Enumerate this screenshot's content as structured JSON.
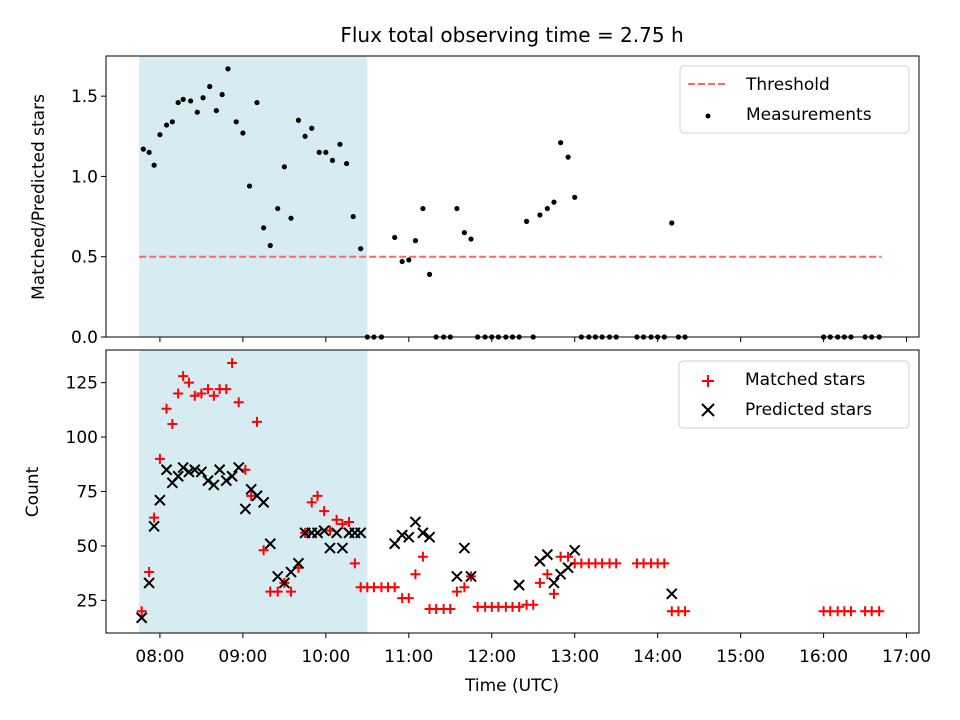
{
  "chart_data": [
    {
      "type": "scatter",
      "title": "Flux total observing time = 2.75 h",
      "xlabel": "",
      "ylabel": "Matched/Predicted stars",
      "xlim": [
        7.35,
        17.15
      ],
      "ylim": [
        0,
        1.75
      ],
      "yticks": [
        0.0,
        0.5,
        1.0,
        1.5
      ],
      "ytick_labels": [
        "0.0",
        "0.5",
        "1.0",
        "1.5"
      ],
      "shaded_range": [
        7.75,
        10.5
      ],
      "shade_color": "#add8e6",
      "legend_position": "top-right",
      "series": [
        {
          "name": "Threshold",
          "kind": "dashed-line",
          "color": "#ff6666",
          "x": [
            7.75,
            16.7
          ],
          "y": [
            0.5,
            0.5
          ]
        },
        {
          "name": "Measurements",
          "kind": "dot",
          "color": "#000000",
          "points": [
            [
              7.8,
              1.17
            ],
            [
              7.87,
              1.15
            ],
            [
              7.93,
              1.07
            ],
            [
              8.0,
              1.26
            ],
            [
              8.08,
              1.32
            ],
            [
              8.15,
              1.34
            ],
            [
              8.22,
              1.46
            ],
            [
              8.28,
              1.48
            ],
            [
              8.37,
              1.47
            ],
            [
              8.45,
              1.4
            ],
            [
              8.52,
              1.49
            ],
            [
              8.6,
              1.56
            ],
            [
              8.68,
              1.41
            ],
            [
              8.75,
              1.51
            ],
            [
              8.82,
              1.67
            ],
            [
              8.92,
              1.34
            ],
            [
              9.0,
              1.27
            ],
            [
              9.08,
              0.94
            ],
            [
              9.17,
              1.46
            ],
            [
              9.25,
              0.68
            ],
            [
              9.33,
              0.57
            ],
            [
              9.42,
              0.8
            ],
            [
              9.5,
              1.06
            ],
            [
              9.58,
              0.74
            ],
            [
              9.67,
              1.35
            ],
            [
              9.75,
              1.25
            ],
            [
              9.83,
              1.3
            ],
            [
              9.92,
              1.15
            ],
            [
              10.0,
              1.15
            ],
            [
              10.08,
              1.1
            ],
            [
              10.17,
              1.2
            ],
            [
              10.25,
              1.08
            ],
            [
              10.33,
              0.75
            ],
            [
              10.42,
              0.55
            ],
            [
              10.5,
              0.0
            ],
            [
              10.58,
              0.0
            ],
            [
              10.67,
              0.0
            ],
            [
              10.83,
              0.62
            ],
            [
              10.92,
              0.47
            ],
            [
              11.0,
              0.48
            ],
            [
              11.08,
              0.6
            ],
            [
              11.17,
              0.8
            ],
            [
              11.25,
              0.39
            ],
            [
              11.33,
              0.0
            ],
            [
              11.42,
              0.0
            ],
            [
              11.5,
              0.0
            ],
            [
              11.58,
              0.8
            ],
            [
              11.67,
              0.65
            ],
            [
              11.75,
              0.61
            ],
            [
              11.83,
              0.0
            ],
            [
              11.92,
              0.0
            ],
            [
              12.0,
              0.0
            ],
            [
              12.08,
              0.0
            ],
            [
              12.17,
              0.0
            ],
            [
              12.25,
              0.0
            ],
            [
              12.33,
              0.0
            ],
            [
              12.42,
              0.72
            ],
            [
              12.5,
              0.0
            ],
            [
              12.58,
              0.76
            ],
            [
              12.67,
              0.8
            ],
            [
              12.75,
              0.84
            ],
            [
              12.83,
              1.21
            ],
            [
              12.92,
              1.12
            ],
            [
              13.0,
              0.87
            ],
            [
              13.08,
              0.0
            ],
            [
              13.17,
              0.0
            ],
            [
              13.25,
              0.0
            ],
            [
              13.33,
              0.0
            ],
            [
              13.42,
              0.0
            ],
            [
              13.5,
              0.0
            ],
            [
              13.75,
              0.0
            ],
            [
              13.83,
              0.0
            ],
            [
              13.92,
              0.0
            ],
            [
              14.0,
              0.0
            ],
            [
              14.08,
              0.0
            ],
            [
              14.17,
              0.71
            ],
            [
              14.25,
              0.0
            ],
            [
              14.33,
              0.0
            ],
            [
              16.0,
              0.0
            ],
            [
              16.08,
              0.0
            ],
            [
              16.17,
              0.0
            ],
            [
              16.25,
              0.0
            ],
            [
              16.33,
              0.0
            ],
            [
              16.5,
              0.0
            ],
            [
              16.58,
              0.0
            ],
            [
              16.67,
              0.0
            ]
          ]
        }
      ]
    },
    {
      "type": "scatter",
      "title": "",
      "xlabel": "Time (UTC)",
      "ylabel": "Count",
      "xlim": [
        7.35,
        17.15
      ],
      "ylim": [
        10,
        140
      ],
      "xticks": [
        8,
        9,
        10,
        11,
        12,
        13,
        14,
        15,
        16,
        17
      ],
      "xtick_labels": [
        "08:00",
        "09:00",
        "10:00",
        "11:00",
        "12:00",
        "13:00",
        "14:00",
        "15:00",
        "16:00",
        "17:00"
      ],
      "yticks": [
        25,
        50,
        75,
        100,
        125
      ],
      "ytick_labels": [
        "25",
        "50",
        "75",
        "100",
        "125"
      ],
      "shaded_range": [
        7.75,
        10.5
      ],
      "shade_color": "#add8e6",
      "legend_position": "top-right",
      "series": [
        {
          "name": "Matched stars",
          "kind": "plus",
          "color": "#ff0000",
          "points": [
            [
              7.78,
              20
            ],
            [
              7.87,
              38
            ],
            [
              7.93,
              63
            ],
            [
              8.0,
              90
            ],
            [
              8.08,
              113
            ],
            [
              8.15,
              106
            ],
            [
              8.22,
              120
            ],
            [
              8.28,
              128
            ],
            [
              8.35,
              125
            ],
            [
              8.42,
              119
            ],
            [
              8.5,
              120
            ],
            [
              8.58,
              122
            ],
            [
              8.65,
              119
            ],
            [
              8.72,
              122
            ],
            [
              8.8,
              122
            ],
            [
              8.87,
              134
            ],
            [
              8.95,
              116
            ],
            [
              9.03,
              85
            ],
            [
              9.1,
              73
            ],
            [
              9.17,
              107
            ],
            [
              9.25,
              48
            ],
            [
              9.33,
              29
            ],
            [
              9.42,
              29
            ],
            [
              9.5,
              33
            ],
            [
              9.58,
              29
            ],
            [
              9.67,
              40
            ],
            [
              9.75,
              56
            ],
            [
              9.83,
              70
            ],
            [
              9.9,
              73
            ],
            [
              9.98,
              66
            ],
            [
              10.05,
              57
            ],
            [
              10.13,
              62
            ],
            [
              10.2,
              60
            ],
            [
              10.28,
              61
            ],
            [
              10.35,
              42
            ],
            [
              10.42,
              31
            ],
            [
              10.5,
              31
            ],
            [
              10.58,
              31
            ],
            [
              10.67,
              31
            ],
            [
              10.75,
              31
            ],
            [
              10.83,
              31
            ],
            [
              10.92,
              26
            ],
            [
              11.0,
              26
            ],
            [
              11.08,
              37
            ],
            [
              11.17,
              45
            ],
            [
              11.25,
              21
            ],
            [
              11.33,
              21
            ],
            [
              11.42,
              21
            ],
            [
              11.5,
              21
            ],
            [
              11.58,
              29
            ],
            [
              11.67,
              31
            ],
            [
              11.75,
              36
            ],
            [
              11.83,
              22
            ],
            [
              11.92,
              22
            ],
            [
              12.0,
              22
            ],
            [
              12.08,
              22
            ],
            [
              12.17,
              22
            ],
            [
              12.25,
              22
            ],
            [
              12.33,
              22
            ],
            [
              12.42,
              23
            ],
            [
              12.5,
              23
            ],
            [
              12.58,
              33
            ],
            [
              12.67,
              37
            ],
            [
              12.75,
              28
            ],
            [
              12.83,
              45
            ],
            [
              12.92,
              45
            ],
            [
              13.0,
              42
            ],
            [
              13.08,
              42
            ],
            [
              13.17,
              42
            ],
            [
              13.25,
              42
            ],
            [
              13.33,
              42
            ],
            [
              13.42,
              42
            ],
            [
              13.5,
              42
            ],
            [
              13.75,
              42
            ],
            [
              13.83,
              42
            ],
            [
              13.92,
              42
            ],
            [
              14.0,
              42
            ],
            [
              14.08,
              42
            ],
            [
              14.17,
              20
            ],
            [
              14.25,
              20
            ],
            [
              14.33,
              20
            ],
            [
              16.0,
              20
            ],
            [
              16.08,
              20
            ],
            [
              16.17,
              20
            ],
            [
              16.25,
              20
            ],
            [
              16.33,
              20
            ],
            [
              16.5,
              20
            ],
            [
              16.58,
              20
            ],
            [
              16.67,
              20
            ]
          ]
        },
        {
          "name": "Predicted stars",
          "kind": "cross",
          "color": "#000000",
          "points": [
            [
              7.78,
              17
            ],
            [
              7.87,
              33
            ],
            [
              7.93,
              59
            ],
            [
              8.0,
              71
            ],
            [
              8.08,
              85
            ],
            [
              8.15,
              79
            ],
            [
              8.22,
              82
            ],
            [
              8.28,
              86
            ],
            [
              8.35,
              84
            ],
            [
              8.42,
              85
            ],
            [
              8.5,
              84
            ],
            [
              8.58,
              80
            ],
            [
              8.65,
              78
            ],
            [
              8.72,
              85
            ],
            [
              8.8,
              80
            ],
            [
              8.87,
              82
            ],
            [
              8.95,
              86
            ],
            [
              9.03,
              67
            ],
            [
              9.1,
              76
            ],
            [
              9.17,
              73
            ],
            [
              9.25,
              70
            ],
            [
              9.33,
              51
            ],
            [
              9.42,
              36
            ],
            [
              9.5,
              33
            ],
            [
              9.58,
              38
            ],
            [
              9.67,
              42
            ],
            [
              9.75,
              56
            ],
            [
              9.83,
              56
            ],
            [
              9.9,
              56
            ],
            [
              9.98,
              57
            ],
            [
              10.05,
              49
            ],
            [
              10.13,
              56
            ],
            [
              10.2,
              49
            ],
            [
              10.28,
              56
            ],
            [
              10.35,
              56
            ],
            [
              10.42,
              56
            ],
            [
              10.83,
              51
            ],
            [
              10.92,
              55
            ],
            [
              11.0,
              54
            ],
            [
              11.08,
              61
            ],
            [
              11.17,
              56
            ],
            [
              11.25,
              54
            ],
            [
              11.58,
              36
            ],
            [
              11.67,
              49
            ],
            [
              11.75,
              36
            ],
            [
              12.33,
              32
            ],
            [
              12.58,
              43
            ],
            [
              12.67,
              46
            ],
            [
              12.75,
              33
            ],
            [
              12.83,
              37
            ],
            [
              12.92,
              40
            ],
            [
              13.0,
              48
            ],
            [
              14.17,
              28
            ]
          ]
        }
      ]
    }
  ]
}
